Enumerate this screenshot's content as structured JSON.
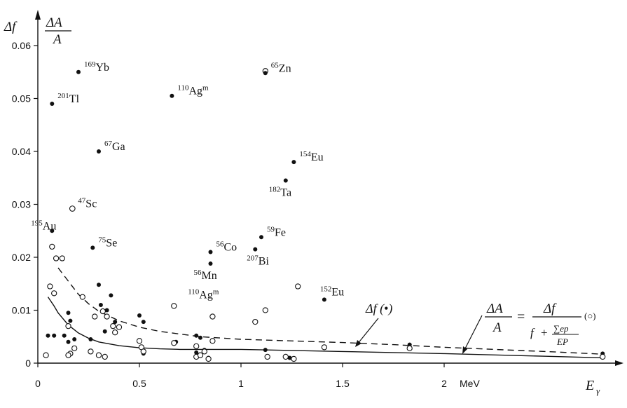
{
  "chart_data": {
    "type": "scatter",
    "xlabel": "E",
    "xlabel_sub": "γ",
    "ylabel_1": "Δf",
    "ylabel_2_num": "ΔA",
    "ylabel_2_den": "A",
    "xlim": [
      0,
      2.9
    ],
    "ylim": [
      0,
      0.065
    ],
    "x_ticks": [
      {
        "v": 0,
        "label": "0"
      },
      {
        "v": 0.5,
        "label": "0.5"
      },
      {
        "v": 1,
        "label": "1"
      },
      {
        "v": 1.5,
        "label": "1.5"
      },
      {
        "v": 2,
        "label": "2"
      }
    ],
    "x_unit": "MeV",
    "y_ticks": [
      {
        "v": 0,
        "label": "0"
      },
      {
        "v": 0.01,
        "label": "0.01"
      },
      {
        "v": 0.02,
        "label": "0.02"
      },
      {
        "v": 0.03,
        "label": "0.03"
      },
      {
        "v": 0.04,
        "label": "0.04"
      },
      {
        "v": 0.05,
        "label": "0.05"
      },
      {
        "v": 0.06,
        "label": "0.06"
      }
    ],
    "labeled_points": [
      {
        "x": 0.2,
        "y": 0.055,
        "sup": "169",
        "sym": "Yb",
        "filled": true
      },
      {
        "x": 0.07,
        "y": 0.049,
        "sup": "201",
        "sym": "Tl",
        "filled": true
      },
      {
        "x": 0.66,
        "y": 0.0505,
        "sup": "110",
        "sym": "Ag",
        "sup2": "m",
        "filled": true
      },
      {
        "x": 1.12,
        "y": 0.0548,
        "sup": "65",
        "sym": "Zn",
        "filled": true
      },
      {
        "x": 0.3,
        "y": 0.04,
        "sup": "67",
        "sym": "Ga",
        "filled": true
      },
      {
        "x": 1.26,
        "y": 0.038,
        "sup": "154",
        "sym": "Eu",
        "filled": true
      },
      {
        "x": 1.22,
        "y": 0.0345,
        "sup": "182",
        "sym": "Ta",
        "filled": true,
        "label_pos": "below-left"
      },
      {
        "x": 0.17,
        "y": 0.0292,
        "sup": "47",
        "sym": "Sc",
        "filled": false
      },
      {
        "x": 0.07,
        "y": 0.025,
        "sup": "195",
        "sym": "Au",
        "filled": true,
        "label_pos": "above-left"
      },
      {
        "x": 0.27,
        "y": 0.0218,
        "sup": "75",
        "sym": "Se",
        "filled": true
      },
      {
        "x": 1.1,
        "y": 0.0238,
        "sup": "59",
        "sym": "Fe",
        "filled": true
      },
      {
        "x": 0.85,
        "y": 0.021,
        "sup": "56",
        "sym": "Co",
        "filled": true
      },
      {
        "x": 1.07,
        "y": 0.0215,
        "sup": "207",
        "sym": "Bi",
        "filled": true,
        "label_pos": "below-right"
      },
      {
        "x": 0.85,
        "y": 0.0188,
        "sup": "56",
        "sym": "Mn",
        "filled": true,
        "label_pos": "below-left"
      },
      {
        "x": 1.41,
        "y": 0.012,
        "sup": "152",
        "sym": "Eu",
        "filled": true,
        "label_pos": "above-right"
      },
      {
        "x": 0.78,
        "y": 0.012,
        "sup": "110",
        "sym": "Ag",
        "sup2": "m",
        "filled": false,
        "label_only": true
      }
    ],
    "filled_points": [
      {
        "x": 0.05,
        "y": 0.0052
      },
      {
        "x": 0.08,
        "y": 0.0052
      },
      {
        "x": 0.13,
        "y": 0.0052
      },
      {
        "x": 0.15,
        "y": 0.0095
      },
      {
        "x": 0.16,
        "y": 0.008
      },
      {
        "x": 0.15,
        "y": 0.004
      },
      {
        "x": 0.18,
        "y": 0.0045
      },
      {
        "x": 0.26,
        "y": 0.0045
      },
      {
        "x": 0.3,
        "y": 0.0148
      },
      {
        "x": 0.31,
        "y": 0.011
      },
      {
        "x": 0.34,
        "y": 0.01
      },
      {
        "x": 0.33,
        "y": 0.006
      },
      {
        "x": 0.36,
        "y": 0.0128
      },
      {
        "x": 0.38,
        "y": 0.0078
      },
      {
        "x": 0.5,
        "y": 0.009
      },
      {
        "x": 0.52,
        "y": 0.0078
      },
      {
        "x": 0.52,
        "y": 0.0018
      },
      {
        "x": 0.68,
        "y": 0.004
      },
      {
        "x": 0.78,
        "y": 0.0052
      },
      {
        "x": 0.8,
        "y": 0.0048
      },
      {
        "x": 0.78,
        "y": 0.002
      },
      {
        "x": 0.82,
        "y": 0.0025
      },
      {
        "x": 0.84,
        "y": 0.001
      },
      {
        "x": 1.12,
        "y": 0.0025
      },
      {
        "x": 1.24,
        "y": 0.001
      },
      {
        "x": 1.41,
        "y": 0.003
      },
      {
        "x": 1.83,
        "y": 0.0035
      },
      {
        "x": 2.78,
        "y": 0.0018
      }
    ],
    "open_points": [
      {
        "x": 0.04,
        "y": 0.0015
      },
      {
        "x": 0.07,
        "y": 0.022
      },
      {
        "x": 0.09,
        "y": 0.0198
      },
      {
        "x": 0.12,
        "y": 0.0198
      },
      {
        "x": 0.06,
        "y": 0.0145
      },
      {
        "x": 0.08,
        "y": 0.0132
      },
      {
        "x": 0.15,
        "y": 0.007
      },
      {
        "x": 0.16,
        "y": 0.0018
      },
      {
        "x": 0.15,
        "y": 0.0015
      },
      {
        "x": 0.18,
        "y": 0.0028
      },
      {
        "x": 0.22,
        "y": 0.0125
      },
      {
        "x": 0.26,
        "y": 0.0022
      },
      {
        "x": 0.28,
        "y": 0.0088
      },
      {
        "x": 0.3,
        "y": 0.0015
      },
      {
        "x": 0.33,
        "y": 0.0012
      },
      {
        "x": 0.32,
        "y": 0.0098
      },
      {
        "x": 0.34,
        "y": 0.0088
      },
      {
        "x": 0.37,
        "y": 0.007
      },
      {
        "x": 0.38,
        "y": 0.0058
      },
      {
        "x": 0.4,
        "y": 0.0068
      },
      {
        "x": 0.5,
        "y": 0.0042
      },
      {
        "x": 0.51,
        "y": 0.003
      },
      {
        "x": 0.52,
        "y": 0.0022
      },
      {
        "x": 0.67,
        "y": 0.0108
      },
      {
        "x": 0.67,
        "y": 0.0038
      },
      {
        "x": 0.78,
        "y": 0.0032
      },
      {
        "x": 0.78,
        "y": 0.0012
      },
      {
        "x": 0.8,
        "y": 0.0015
      },
      {
        "x": 0.82,
        "y": 0.0022
      },
      {
        "x": 0.84,
        "y": 0.0008
      },
      {
        "x": 0.86,
        "y": 0.0088
      },
      {
        "x": 0.86,
        "y": 0.0042
      },
      {
        "x": 1.07,
        "y": 0.0078
      },
      {
        "x": 1.12,
        "y": 0.01
      },
      {
        "x": 1.13,
        "y": 0.0012
      },
      {
        "x": 1.12,
        "y": 0.0552
      },
      {
        "x": 1.22,
        "y": 0.0012
      },
      {
        "x": 1.26,
        "y": 0.0008
      },
      {
        "x": 1.28,
        "y": 0.0145
      },
      {
        "x": 1.41,
        "y": 0.003
      },
      {
        "x": 1.83,
        "y": 0.0028
      },
      {
        "x": 2.78,
        "y": 0.0012
      }
    ],
    "dashed_curve": [
      {
        "x": 0.1,
        "y": 0.018
      },
      {
        "x": 0.15,
        "y": 0.0155
      },
      {
        "x": 0.2,
        "y": 0.013
      },
      {
        "x": 0.25,
        "y": 0.0112
      },
      {
        "x": 0.3,
        "y": 0.0098
      },
      {
        "x": 0.4,
        "y": 0.008
      },
      {
        "x": 0.5,
        "y": 0.0068
      },
      {
        "x": 0.6,
        "y": 0.006
      },
      {
        "x": 0.7,
        "y": 0.0055
      },
      {
        "x": 0.8,
        "y": 0.005
      },
      {
        "x": 1.0,
        "y": 0.0045
      },
      {
        "x": 1.25,
        "y": 0.0042
      },
      {
        "x": 1.5,
        "y": 0.0039
      },
      {
        "x": 1.75,
        "y": 0.0035
      },
      {
        "x": 2.0,
        "y": 0.003
      },
      {
        "x": 2.3,
        "y": 0.0025
      },
      {
        "x": 2.55,
        "y": 0.0021
      },
      {
        "x": 2.78,
        "y": 0.0017
      }
    ],
    "solid_curve": [
      {
        "x": 0.05,
        "y": 0.0125
      },
      {
        "x": 0.08,
        "y": 0.0108
      },
      {
        "x": 0.1,
        "y": 0.0095
      },
      {
        "x": 0.15,
        "y": 0.0072
      },
      {
        "x": 0.2,
        "y": 0.0057
      },
      {
        "x": 0.25,
        "y": 0.0047
      },
      {
        "x": 0.3,
        "y": 0.004
      },
      {
        "x": 0.4,
        "y": 0.0033
      },
      {
        "x": 0.5,
        "y": 0.0029
      },
      {
        "x": 0.6,
        "y": 0.0027
      },
      {
        "x": 0.7,
        "y": 0.0026
      },
      {
        "x": 0.9,
        "y": 0.0026
      },
      {
        "x": 1.0,
        "y": 0.0026
      },
      {
        "x": 1.25,
        "y": 0.0024
      },
      {
        "x": 1.5,
        "y": 0.0022
      },
      {
        "x": 1.75,
        "y": 0.002
      },
      {
        "x": 2.0,
        "y": 0.0018
      },
      {
        "x": 2.5,
        "y": 0.0013
      },
      {
        "x": 2.78,
        "y": 0.001
      }
    ],
    "annotations": {
      "df_label": "Δf (•)",
      "formula_lhs_num": "ΔA",
      "formula_lhs_den": "A",
      "formula_rhs_num": "Δf",
      "formula_den_f": "f",
      "formula_den_plus": "+",
      "formula_den_frac_num": "∑ep",
      "formula_den_frac_den": "EP",
      "formula_tag": "(○)"
    }
  }
}
